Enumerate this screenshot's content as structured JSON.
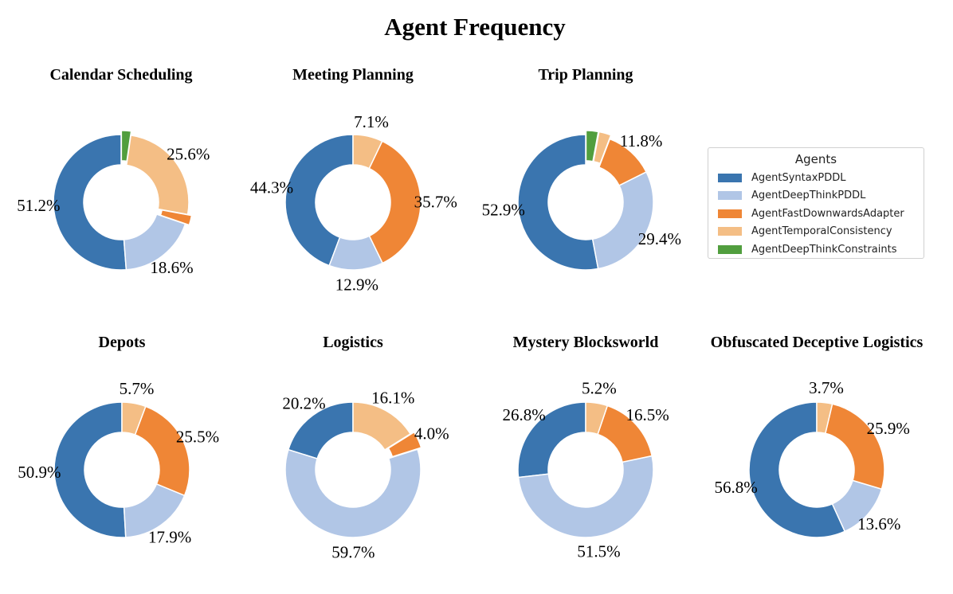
{
  "chart_data": {
    "type": "pie",
    "title": "Agent Frequency",
    "legend": {
      "title": "Agents",
      "placement": "right",
      "entries": [
        "AgentSyntaxPDDL",
        "AgentDeepThinkPDDL",
        "AgentFastDownwardsAdapter",
        "AgentTemporalConsistency",
        "AgentDeepThinkConstraints"
      ]
    },
    "colors": [
      "#3a75af",
      "#b1c6e6",
      "#ef8636",
      "#f4be85",
      "#519e3e"
    ],
    "donut": true,
    "charts": [
      {
        "title": "Calendar Scheduling",
        "values": [
          51.2,
          18.6,
          2.3,
          25.6,
          2.3
        ],
        "exploded": [
          false,
          false,
          true,
          false,
          true
        ]
      },
      {
        "title": "Meeting Planning",
        "values": [
          44.3,
          12.9,
          35.7,
          7.1,
          0
        ],
        "exploded": [
          false,
          false,
          false,
          false,
          false
        ]
      },
      {
        "title": "Trip Planning",
        "values": [
          52.9,
          29.4,
          11.8,
          2.9,
          2.9
        ],
        "exploded": [
          false,
          false,
          false,
          true,
          true
        ]
      },
      {
        "title": "Depots",
        "values": [
          50.9,
          17.9,
          25.5,
          5.7,
          0
        ],
        "exploded": [
          false,
          false,
          false,
          false,
          false
        ]
      },
      {
        "title": "Logistics",
        "values": [
          20.2,
          59.7,
          4.0,
          16.1,
          0
        ],
        "exploded": [
          false,
          false,
          true,
          false,
          false
        ]
      },
      {
        "title": "Mystery Blocksworld",
        "values": [
          26.8,
          51.5,
          16.5,
          5.2,
          0
        ],
        "exploded": [
          false,
          false,
          false,
          false,
          false
        ]
      },
      {
        "title": "Obfuscated Deceptive Logistics",
        "values": [
          56.8,
          13.6,
          25.9,
          3.7,
          0
        ],
        "exploded": [
          false,
          false,
          false,
          false,
          false
        ]
      }
    ]
  }
}
